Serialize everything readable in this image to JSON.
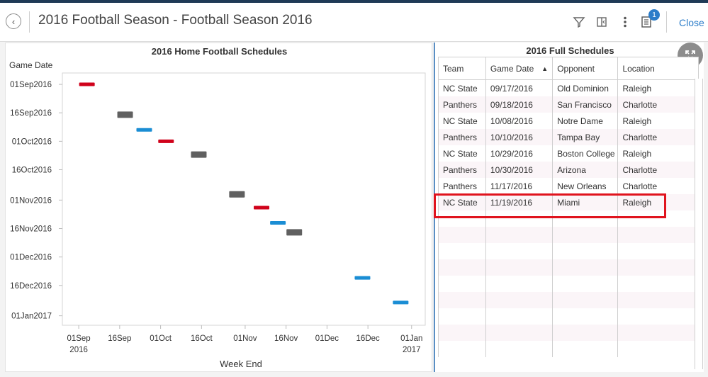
{
  "header": {
    "title": "2016 Football Season - Football Season 2016",
    "close_label": "Close",
    "notification_count": "1"
  },
  "chart": {
    "title": "2016 Home Football Schedules"
  },
  "chart_data": {
    "type": "scatter",
    "title": "2016 Home Football Schedules",
    "xlabel": "Week End",
    "ylabel": "Game Date",
    "x_ticks": [
      {
        "label1": "01Sep",
        "label2": "2016",
        "date": "2016-09-01"
      },
      {
        "label1": "16Sep",
        "label2": "",
        "date": "2016-09-16"
      },
      {
        "label1": "01Oct",
        "label2": "",
        "date": "2016-10-01"
      },
      {
        "label1": "16Oct",
        "label2": "",
        "date": "2016-10-16"
      },
      {
        "label1": "01Nov",
        "label2": "",
        "date": "2016-11-01"
      },
      {
        "label1": "16Nov",
        "label2": "",
        "date": "2016-11-16"
      },
      {
        "label1": "01Dec",
        "label2": "",
        "date": "2016-12-01"
      },
      {
        "label1": "16Dec",
        "label2": "",
        "date": "2016-12-16"
      },
      {
        "label1": "01Jan",
        "label2": "2017",
        "date": "2017-01-01"
      }
    ],
    "y_ticks": [
      {
        "label": "01Sep2016",
        "date": "2016-09-01"
      },
      {
        "label": "16Sep2016",
        "date": "2016-09-16"
      },
      {
        "label": "01Oct2016",
        "date": "2016-10-01"
      },
      {
        "label": "16Oct2016",
        "date": "2016-10-16"
      },
      {
        "label": "01Nov2016",
        "date": "2016-11-01"
      },
      {
        "label": "16Nov2016",
        "date": "2016-11-16"
      },
      {
        "label": "01Dec2016",
        "date": "2016-12-01"
      },
      {
        "label": "16Dec2016",
        "date": "2016-12-16"
      },
      {
        "label": "01Jan2017",
        "date": "2017-01-01"
      }
    ],
    "xlim": [
      "2016-08-26",
      "2017-01-06"
    ],
    "ylim": [
      "2016-08-26",
      "2017-01-06"
    ],
    "grid": false,
    "series": [
      {
        "color": "#d0021b",
        "points": [
          {
            "x": "2016-09-04",
            "y": "2016-09-01"
          },
          {
            "x": "2016-10-03",
            "y": "2016-10-01"
          },
          {
            "x": "2016-11-07",
            "y": "2016-11-05"
          }
        ]
      },
      {
        "color": "#606060",
        "points": [
          {
            "x": "2016-09-18",
            "y": "2016-09-17"
          },
          {
            "x": "2016-10-15",
            "y": "2016-10-08"
          },
          {
            "x": "2016-10-29",
            "y": "2016-10-29"
          },
          {
            "x": "2016-11-19",
            "y": "2016-11-18"
          }
        ]
      },
      {
        "color": "#1a8dd4",
        "points": [
          {
            "x": "2016-09-25",
            "y": "2016-09-25"
          },
          {
            "x": "2016-11-13",
            "y": "2016-11-13"
          },
          {
            "x": "2016-12-14",
            "y": "2016-12-12"
          },
          {
            "x": "2016-12-28",
            "y": "2016-12-25"
          }
        ]
      }
    ]
  },
  "table": {
    "title": "2016 Full Schedules",
    "columns": [
      "Team",
      "Game Date",
      "Opponent",
      "Location"
    ],
    "rows": [
      [
        "NC State",
        "09/17/2016",
        "Old Dominion",
        "Raleigh"
      ],
      [
        "Panthers",
        "09/18/2016",
        "San Francisco",
        "Charlotte"
      ],
      [
        "NC State",
        "10/08/2016",
        "Notre Dame",
        "Raleigh"
      ],
      [
        "Panthers",
        "10/10/2016",
        "Tampa Bay",
        "Charlotte"
      ],
      [
        "NC State",
        "10/29/2016",
        "Boston College",
        "Raleigh"
      ],
      [
        "Panthers",
        "10/30/2016",
        "Arizona",
        "Charlotte"
      ],
      [
        "Panthers",
        "11/17/2016",
        "New Orleans",
        "Charlotte"
      ],
      [
        "NC State",
        "11/19/2016",
        "Miami",
        "Raleigh"
      ],
      [
        "",
        "",
        "",
        ""
      ],
      [
        "",
        "",
        "",
        ""
      ],
      [
        "",
        "",
        "",
        ""
      ],
      [
        "",
        "",
        "",
        ""
      ],
      [
        "",
        "",
        "",
        ""
      ],
      [
        "",
        "",
        "",
        ""
      ],
      [
        "",
        "",
        "",
        ""
      ],
      [
        "",
        "",
        "",
        ""
      ],
      [
        "",
        "",
        "",
        ""
      ]
    ]
  },
  "colors": {
    "accent": "#2c7dc9",
    "highlight": "#e0141e"
  }
}
